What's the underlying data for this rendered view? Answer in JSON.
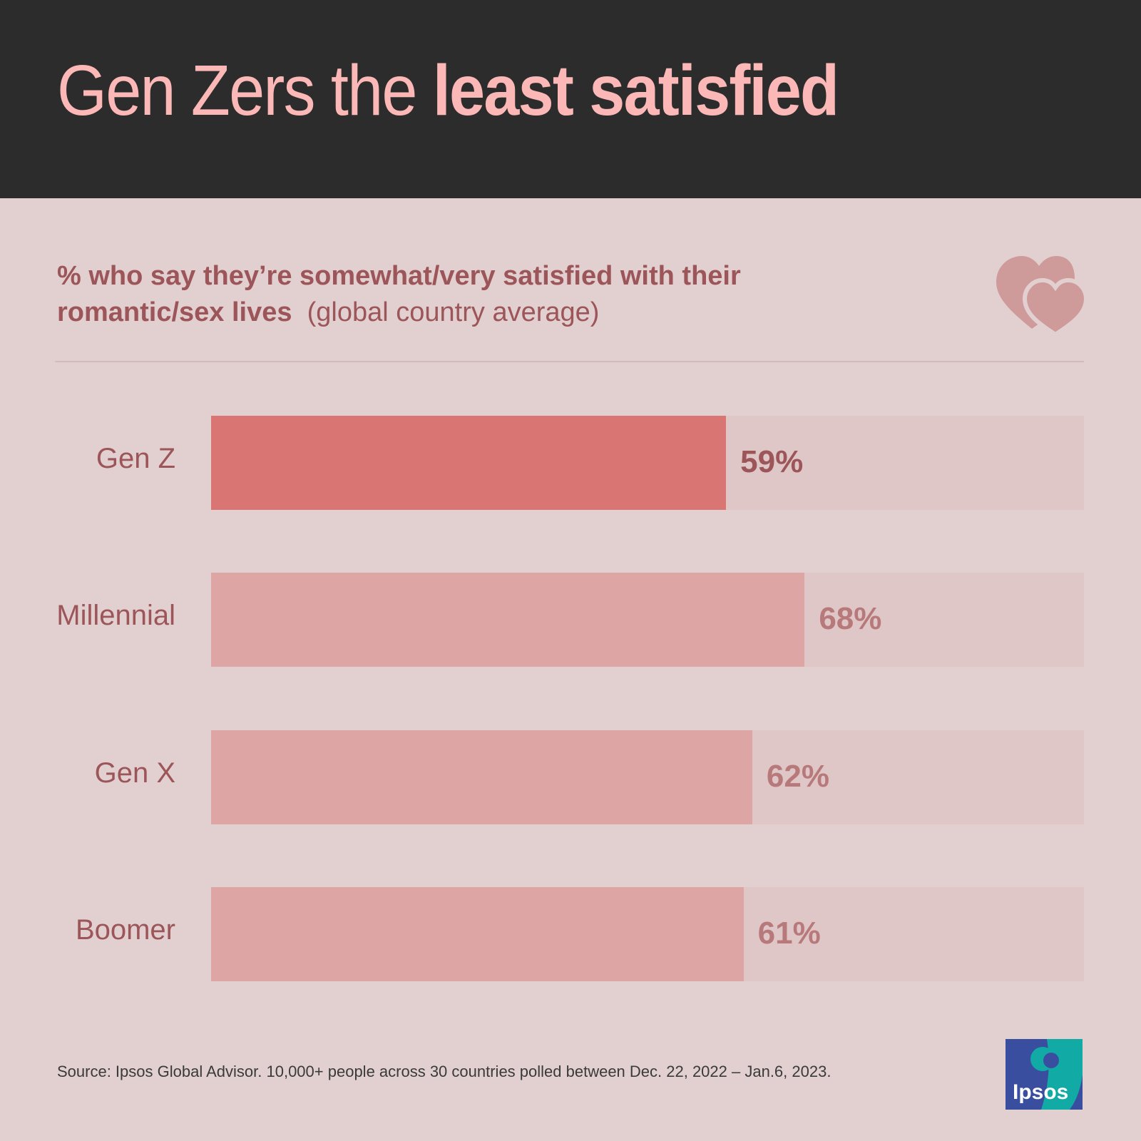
{
  "header": {
    "title_regular": "Gen Zers the ",
    "title_bold": "least satisfied"
  },
  "subtitle": {
    "bold": "% who say they’re somewhat/very satisfied with their romantic/sex lives",
    "regular": "(global country average)"
  },
  "chart_data": {
    "type": "bar",
    "orientation": "horizontal",
    "categories": [
      "Gen Z",
      "Millennial",
      "Gen X",
      "Boomer"
    ],
    "values": [
      59,
      68,
      62,
      61
    ],
    "value_labels": [
      "59%",
      "68%",
      "62%",
      "61%"
    ],
    "xlim": [
      0,
      100
    ],
    "highlight": "Gen Z",
    "colors": {
      "highlight": "#d97674",
      "normal": "#dea5a5",
      "track": "#dfc6c7",
      "highlight_label": "#9c5558",
      "normal_label": "#b8797b"
    }
  },
  "footer": {
    "source": "Source: Ipsos Global Advisor. 10,000+ people across 30 countries polled between Dec. 22, 2022 – Jan.6, 2023.",
    "logo_text": "Ipsos"
  },
  "icons": [
    "hearts-icon"
  ]
}
